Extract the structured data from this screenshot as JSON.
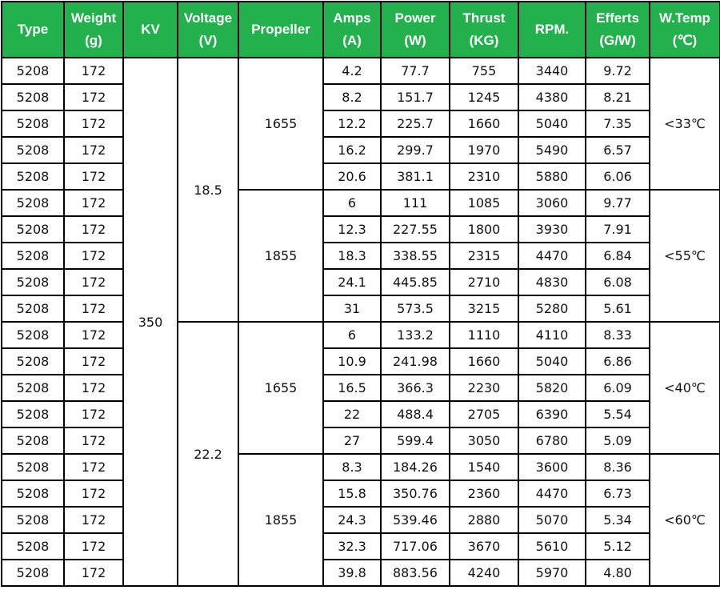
{
  "table": {
    "header": [
      [
        "Type"
      ],
      [
        "Weight",
        "(g)"
      ],
      [
        "KV"
      ],
      [
        "Voltage",
        "(V)"
      ],
      [
        "Propeller"
      ],
      [
        "Amps",
        "(A)"
      ],
      [
        "Power",
        "(W)"
      ],
      [
        "Thrust",
        "(KG)"
      ],
      [
        "RPM."
      ],
      [
        "Efferts",
        "(G/W)"
      ],
      [
        "W.Temp",
        "(℃)"
      ]
    ],
    "kv": "350",
    "voltage": [
      "18.5",
      "22.2"
    ],
    "propeller": [
      "1655",
      "1855",
      "1655",
      "1855"
    ],
    "w_temp": [
      "<33℃",
      "<55℃",
      "<40℃",
      "<60℃"
    ],
    "rows": [
      [
        "5208",
        "172",
        "4.2",
        "77.7",
        "755",
        "3440",
        "9.72"
      ],
      [
        "5208",
        "172",
        "8.2",
        "151.7",
        "1245",
        "4380",
        "8.21"
      ],
      [
        "5208",
        "172",
        "12.2",
        "225.7",
        "1660",
        "5040",
        "7.35"
      ],
      [
        "5208",
        "172",
        "16.2",
        "299.7",
        "1970",
        "5490",
        "6.57"
      ],
      [
        "5208",
        "172",
        "20.6",
        "381.1",
        "2310",
        "5880",
        "6.06"
      ],
      [
        "5208",
        "172",
        "6",
        "111",
        "1085",
        "3060",
        "9.77"
      ],
      [
        "5208",
        "172",
        "12.3",
        "227.55",
        "1800",
        "3930",
        "7.91"
      ],
      [
        "5208",
        "172",
        "18.3",
        "338.55",
        "2315",
        "4470",
        "6.84"
      ],
      [
        "5208",
        "172",
        "24.1",
        "445.85",
        "2710",
        "4830",
        "6.08"
      ],
      [
        "5208",
        "172",
        "31",
        "573.5",
        "3215",
        "5280",
        "5.61"
      ],
      [
        "5208",
        "172",
        "6",
        "133.2",
        "1110",
        "4110",
        "8.33"
      ],
      [
        "5208",
        "172",
        "10.9",
        "241.98",
        "1660",
        "5040",
        "6.86"
      ],
      [
        "5208",
        "172",
        "16.5",
        "366.3",
        "2230",
        "5820",
        "6.09"
      ],
      [
        "5208",
        "172",
        "22",
        "488.4",
        "2705",
        "6390",
        "5.54"
      ],
      [
        "5208",
        "172",
        "27",
        "599.4",
        "3050",
        "6780",
        "5.09"
      ],
      [
        "5208",
        "172",
        "8.3",
        "184.26",
        "1540",
        "3600",
        "8.36"
      ],
      [
        "5208",
        "172",
        "15.8",
        "350.76",
        "2360",
        "4470",
        "6.73"
      ],
      [
        "5208",
        "172",
        "24.3",
        "539.46",
        "2880",
        "5070",
        "5.34"
      ],
      [
        "5208",
        "172",
        "32.3",
        "717.06",
        "3670",
        "5610",
        "5.12"
      ],
      [
        "5208",
        "172",
        "39.8",
        "883.56",
        "4240",
        "5970",
        "4.80"
      ]
    ]
  }
}
